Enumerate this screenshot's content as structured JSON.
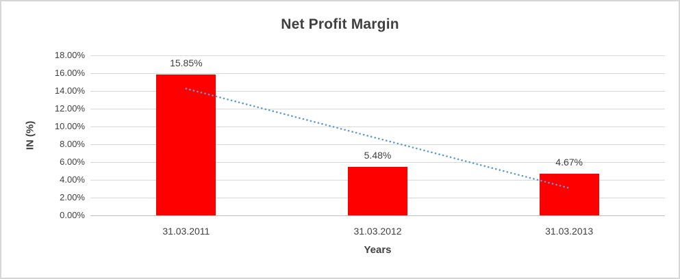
{
  "chart_data": {
    "type": "bar",
    "title": "Net Profit Margin",
    "xlabel": "Years",
    "ylabel": "IN (%)",
    "categories": [
      "31.03.2011",
      "31.03.2012",
      "31.03.2013"
    ],
    "values": [
      15.85,
      5.48,
      4.67
    ],
    "data_labels": [
      "15.85%",
      "5.48%",
      "4.67%"
    ],
    "ylim": [
      0,
      18
    ],
    "ytick_step": 2,
    "ytick_labels": [
      "0.00%",
      "2.00%",
      "4.00%",
      "6.00%",
      "8.00%",
      "10.00%",
      "12.00%",
      "14.00%",
      "16.00%",
      "18.00%"
    ],
    "grid": true,
    "legend_position": "none",
    "trendline": {
      "type": "linear",
      "style": "dotted",
      "start_value": 14.26,
      "end_value": 3.08,
      "color": "#5b9bd5"
    },
    "colors": {
      "bar": "#ff0000",
      "text": "#404040",
      "gridline": "#d9d9d9",
      "axis_line": "#bfbfbf",
      "border": "#d6d6d6"
    }
  }
}
